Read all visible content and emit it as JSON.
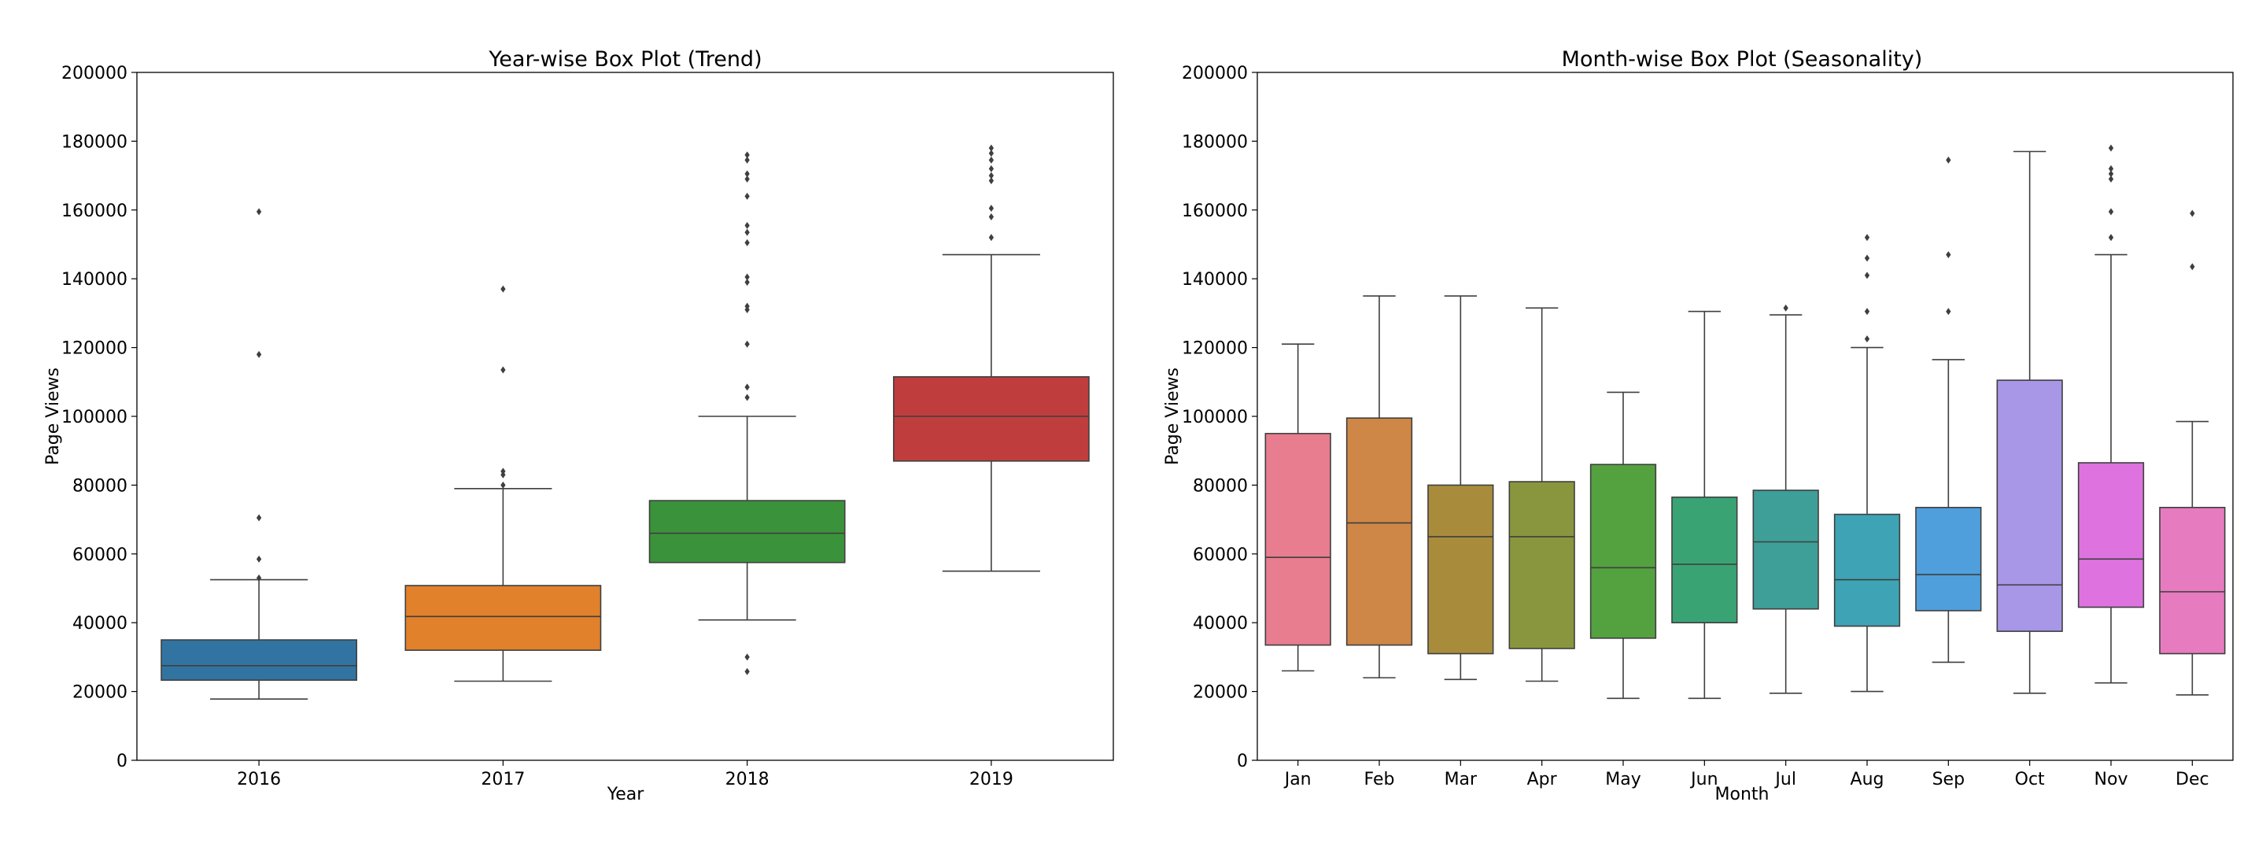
{
  "chart_data": [
    {
      "type": "box",
      "title": "Year-wise Box Plot (Trend)",
      "xlabel": "Year",
      "ylabel": "Page Views",
      "ylim": [
        0,
        200000
      ],
      "yticks": [
        0,
        20000,
        40000,
        60000,
        80000,
        100000,
        120000,
        140000,
        160000,
        180000,
        200000
      ],
      "categories": [
        "2016",
        "2017",
        "2018",
        "2019"
      ],
      "colors": [
        "#3274a1",
        "#e1812c",
        "#3a923a",
        "#c03d3e"
      ],
      "boxes": [
        {
          "whisker_low": 17800,
          "q1": 23300,
          "median": 27500,
          "q3": 35000,
          "whisker_high": 52500,
          "outliers": [
            53000,
            58500,
            70500,
            118000,
            159500
          ]
        },
        {
          "whisker_low": 23000,
          "q1": 32000,
          "median": 41800,
          "q3": 50800,
          "whisker_high": 79000,
          "outliers": [
            80000,
            83000,
            84000,
            113500,
            137000
          ]
        },
        {
          "whisker_low": 40800,
          "q1": 57500,
          "median": 66000,
          "q3": 75500,
          "whisker_high": 100000,
          "outliers": [
            25800,
            30000,
            105500,
            108500,
            121000,
            131000,
            132000,
            139000,
            140500,
            150500,
            153500,
            155500,
            164000,
            169000,
            170500,
            174500,
            176000
          ]
        },
        {
          "whisker_low": 55000,
          "q1": 87000,
          "median": 100000,
          "q3": 111500,
          "whisker_high": 147000,
          "outliers": [
            152000,
            158000,
            160500,
            168500,
            170000,
            172000,
            174500,
            176500,
            178000
          ]
        }
      ]
    },
    {
      "type": "box",
      "title": "Month-wise Box Plot (Seasonality)",
      "xlabel": "Month",
      "ylabel": "Page Views",
      "ylim": [
        0,
        200000
      ],
      "yticks": [
        0,
        20000,
        40000,
        60000,
        80000,
        100000,
        120000,
        140000,
        160000,
        180000,
        200000
      ],
      "categories": [
        "Jan",
        "Feb",
        "Mar",
        "Apr",
        "May",
        "Jun",
        "Jul",
        "Aug",
        "Sep",
        "Oct",
        "Nov",
        "Dec"
      ],
      "colors": [
        "#e87d8f",
        "#ce8746",
        "#a88c3c",
        "#8a963d",
        "#54a140",
        "#3aa374",
        "#3d9f97",
        "#3ea3b5",
        "#4f9fdd",
        "#a896e6",
        "#de73e0",
        "#e67bbf"
      ],
      "boxes": [
        {
          "whisker_low": 26000,
          "q1": 33500,
          "median": 59000,
          "q3": 95000,
          "whisker_high": 121000,
          "outliers": []
        },
        {
          "whisker_low": 24000,
          "q1": 33500,
          "median": 69000,
          "q3": 99500,
          "whisker_high": 135000,
          "outliers": []
        },
        {
          "whisker_low": 23500,
          "q1": 31000,
          "median": 65000,
          "q3": 80000,
          "whisker_high": 135000,
          "outliers": []
        },
        {
          "whisker_low": 23000,
          "q1": 32500,
          "median": 65000,
          "q3": 81000,
          "whisker_high": 131500,
          "outliers": []
        },
        {
          "whisker_low": 18000,
          "q1": 35500,
          "median": 56000,
          "q3": 86000,
          "whisker_high": 107000,
          "outliers": []
        },
        {
          "whisker_low": 18000,
          "q1": 40000,
          "median": 57000,
          "q3": 76500,
          "whisker_high": 130500,
          "outliers": []
        },
        {
          "whisker_low": 19500,
          "q1": 44000,
          "median": 63500,
          "q3": 78500,
          "whisker_high": 129500,
          "outliers": [
            131500
          ]
        },
        {
          "whisker_low": 20000,
          "q1": 39000,
          "median": 52500,
          "q3": 71500,
          "whisker_high": 120000,
          "outliers": [
            122500,
            130500,
            141000,
            146000,
            152000
          ]
        },
        {
          "whisker_low": 28500,
          "q1": 43500,
          "median": 54000,
          "q3": 73500,
          "whisker_high": 116500,
          "outliers": [
            130500,
            147000,
            174500
          ]
        },
        {
          "whisker_low": 19500,
          "q1": 37500,
          "median": 51000,
          "q3": 110500,
          "whisker_high": 177000,
          "outliers": []
        },
        {
          "whisker_low": 22500,
          "q1": 44500,
          "median": 58500,
          "q3": 86500,
          "whisker_high": 147000,
          "outliers": [
            152000,
            159500,
            169000,
            170500,
            172000,
            178000
          ]
        },
        {
          "whisker_low": 19000,
          "q1": 31000,
          "median": 49000,
          "q3": 73500,
          "whisker_high": 98500,
          "outliers": [
            143500,
            159000
          ]
        }
      ]
    }
  ]
}
